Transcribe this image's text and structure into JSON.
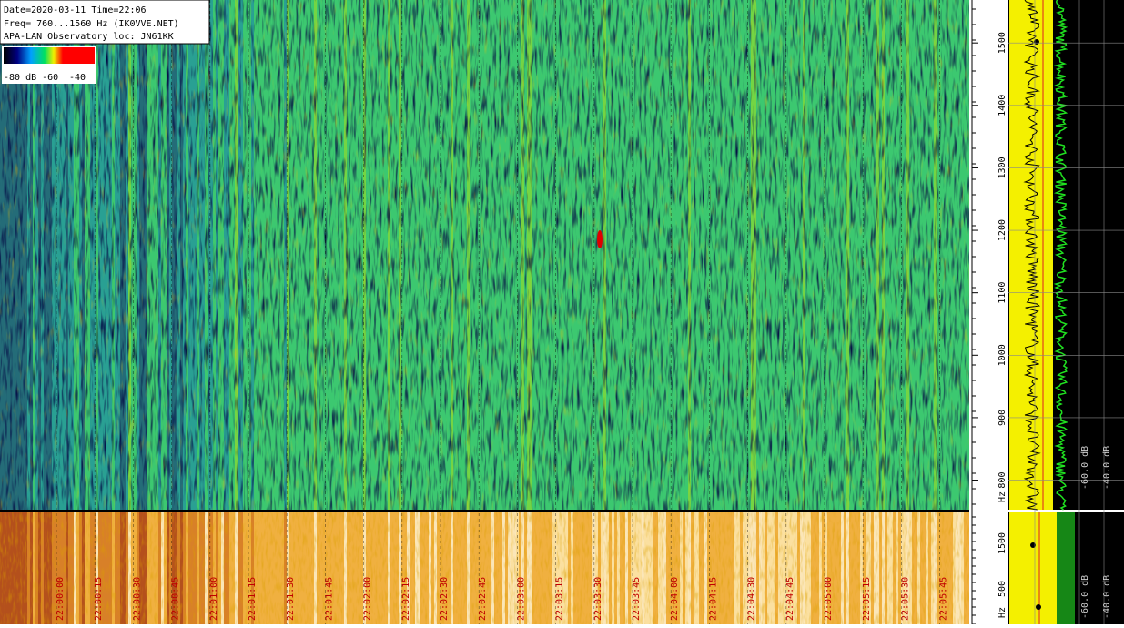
{
  "chart_data": {
    "type": "spectrogram",
    "header": [
      "Date=2020-03-11 Time=22:06",
      "Freq= 760...1560 Hz (IK0VVE.NET)",
      "APA-LAN Observatory loc: JN61KK"
    ],
    "colorbar_labels": [
      "-80 dB -60",
      "-40"
    ],
    "ylim": [
      760,
      1560
    ],
    "yticks": [
      800,
      900,
      1000,
      1100,
      1200,
      1300,
      1400,
      1500
    ],
    "y_unit": "Hz",
    "x_labels": [
      "22:00:00",
      "22:00:15",
      "22:00:30",
      "22:00:45",
      "22:01:00",
      "22:01:15",
      "22:01:30",
      "22:01:45",
      "22:02:00",
      "22:02:15",
      "22:02:30",
      "22:02:45",
      "22:03:00",
      "22:03:15",
      "22:03:30",
      "22:03:45",
      "22:04:00",
      "22:04:15",
      "22:04:30",
      "22:04:45",
      "22:05:00",
      "22:05:15",
      "22:05:30",
      "22:05:45"
    ],
    "lower_yticks": [
      "1500",
      "500"
    ],
    "db_labels": [
      "-60.0 dB",
      "-40.0 dB"
    ]
  }
}
